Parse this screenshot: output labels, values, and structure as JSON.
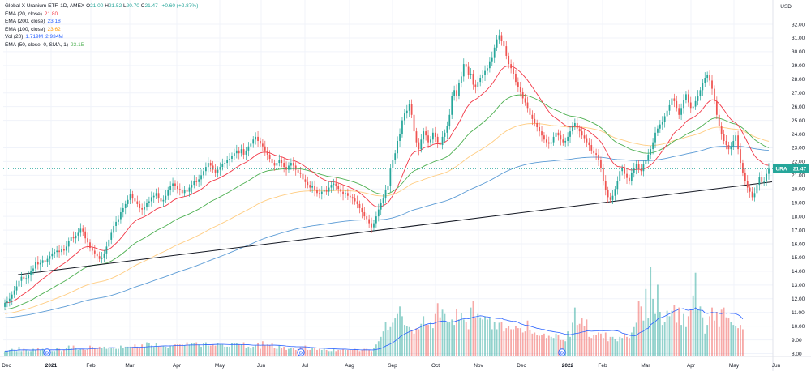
{
  "header": {
    "symbol_line": "Global X Uranium ETF, 1D, AMEX",
    "ohlc": [
      {
        "label": "O",
        "value": "21.00"
      },
      {
        "label": "H",
        "value": "21.52"
      },
      {
        "label": "L",
        "value": "20.70"
      },
      {
        "label": "C",
        "value": "21.47"
      }
    ],
    "change": "+0.60 (+2.87%)",
    "currency": "USD"
  },
  "indicators": [
    {
      "label": "EMA (20, close)",
      "value": "21.80",
      "color": "#f23645"
    },
    {
      "label": "EMA (200, close)",
      "value": "23.18",
      "color": "#2962ff"
    },
    {
      "label": "EMA (100, close)",
      "value": "23.62",
      "color": "#ff9800"
    },
    {
      "label": "Vol (20)",
      "value": "1.719M",
      "value2": "2.934M",
      "color": "#2962ff"
    },
    {
      "label": "EMA (50, close, 0, SMA, 1)",
      "value": "23.15",
      "color": "#4caf50"
    }
  ],
  "price_tag": {
    "symbol": "URA",
    "value": "21.47",
    "color": "#26a69a"
  },
  "colors": {
    "up": "#26a69a",
    "down": "#ef5350",
    "ema20": "#f23645",
    "ema50": "#4caf50",
    "ema100": "#ffcc80",
    "ema200": "#5b9bd5",
    "trend": "#131722",
    "vol_ma": "#2962ff"
  },
  "chart_data": {
    "type": "candlestick",
    "ylim": [
      8.0,
      32.5
    ],
    "y_ticks": [
      "32.00",
      "31.00",
      "30.00",
      "29.00",
      "28.00",
      "27.00",
      "26.00",
      "25.00",
      "24.00",
      "23.00",
      "22.00",
      "21.00",
      "20.00",
      "19.00",
      "18.00",
      "17.00",
      "16.00",
      "15.00",
      "14.00",
      "13.00",
      "12.00",
      "11.00",
      "10.00",
      "9.00",
      "8.00"
    ],
    "x_ticks": [
      "Dec",
      "2021",
      "Feb",
      "Mar",
      "Apr",
      "May",
      "Jun",
      "Jul",
      "Aug",
      "Sep",
      "Oct",
      "Nov",
      "Dec",
      "2022",
      "Feb",
      "Mar",
      "Apr",
      "May",
      "Jun"
    ],
    "dividend_markers": [
      "D",
      "D",
      "D"
    ],
    "close_series": [
      11.7,
      11.8,
      12,
      12.3,
      12.6,
      12.9,
      13.3,
      13.6,
      13.4,
      13.5,
      13.7,
      14,
      14.2,
      14.7,
      14.5,
      14.6,
      14.8,
      14.7,
      14.9,
      15.1,
      15.3,
      15.4,
      15.5,
      15.4,
      15.6,
      15.5,
      15.8,
      16.2,
      16.5,
      16.4,
      16.6,
      16.8,
      17.1,
      16.9,
      16.4,
      16.1,
      15.7,
      15.5,
      15.3,
      15.1,
      14.9,
      15,
      15.3,
      15.8,
      16.3,
      16.8,
      17.3,
      17.6,
      17.8,
      18.3,
      18.6,
      18.9,
      19.2,
      19.6,
      19.3,
      19.1,
      18.9,
      18.6,
      18.5,
      18.7,
      19,
      19.1,
      19.4,
      19.5,
      19.7,
      19.3,
      19.1,
      19.2,
      19.5,
      19.9,
      20.2,
      20.4,
      20.2,
      20,
      19.9,
      19.7,
      19.9,
      19.8,
      20.1,
      20.3,
      20.6,
      20.5,
      20.7,
      21,
      21.3,
      21.6,
      21.9,
      21.7,
      21.4,
      21.2,
      21.4,
      21.6,
      21.8,
      21.9,
      22.1,
      22.2,
      22.4,
      22.6,
      22.8,
      22.6,
      22.9,
      22.5,
      22.8,
      23.1,
      23.3,
      23.6,
      23.8,
      23.5,
      23.3,
      23.1,
      22.8,
      22.5,
      22.2,
      21.9,
      21.7,
      21.9,
      22.1,
      21.9,
      21.6,
      21.4,
      21.7,
      21.9,
      21.7,
      21.4,
      21.2,
      21.1,
      20.7,
      20.5,
      20.3,
      20.1,
      20.2,
      19.9,
      19.7,
      19.6,
      19.8,
      19.9,
      19.8,
      20.1,
      20.3,
      20.4,
      20.2,
      20,
      19.8,
      19.6,
      19.7,
      19.5,
      19.4,
      19.3,
      19.1,
      18.9,
      18.6,
      18.3,
      18,
      17.8,
      17.5,
      17.2,
      17.5,
      18,
      18.5,
      19,
      19.3,
      19.9,
      20.2,
      21.5,
      22.1,
      22.6,
      23.5,
      24,
      25,
      25.5,
      25.7,
      26.2,
      25.4,
      24.2,
      23.4,
      22.9,
      23.6,
      24.2,
      23.9,
      23.4,
      23.6,
      24.1,
      23.8,
      23.4,
      23.2,
      23.8,
      24.1,
      24.6,
      25.4,
      26.8,
      27.2,
      26.8,
      27.7,
      28.2,
      29.1,
      28.9,
      28.3,
      28.4,
      27.6,
      27.4,
      27.8,
      28.1,
      28.3,
      28.6,
      28.8,
      29.3,
      29.6,
      30.3,
      30.9,
      31.2,
      30.8,
      30.4,
      29.7,
      29.1,
      28.8,
      28.4,
      27.8,
      27.4,
      27.1,
      26.6,
      26.3,
      25.9,
      25.4,
      25.1,
      24.8,
      24.5,
      24.2,
      23.9,
      23.6,
      23.4,
      23.3,
      23.4,
      23.8,
      24.1,
      23.9,
      23.6,
      23.4,
      23.5,
      23.8,
      24.2,
      24.6,
      24.8,
      24.4,
      24.2,
      23.9,
      23.7,
      23.4,
      23.2,
      22.8,
      22.6,
      22.5,
      22.1,
      21.5,
      20.6,
      19.9,
      19.4,
      19.2,
      19.5,
      20,
      20.6,
      21.3,
      21.5,
      21.1,
      20.8,
      20.6,
      21.2,
      21.5,
      21.8,
      21.4,
      21.3,
      21.8,
      22.1,
      22.5,
      22.9,
      23.4,
      24.1,
      24.4,
      24.7,
      24.9,
      25.3,
      25.7,
      26.1,
      26.6,
      26.4,
      25.9,
      25.4,
      25.9,
      26.5,
      26.9,
      26.3,
      25.9,
      26,
      26.4,
      26.8,
      27.2,
      27.7,
      28.1,
      28.3,
      27.9,
      27.3,
      26.4,
      25.4,
      24.6,
      24,
      23.5,
      23.2,
      22.9,
      23.1,
      23.5,
      23.9,
      22.9,
      21.9,
      21.2,
      20.6,
      20.1,
      19.8,
      19.4,
      19.7,
      20.3,
      20.9,
      20.5,
      20.6,
      21.1,
      21.47
    ],
    "volume_series": [
      0.5,
      0.5,
      0.6,
      0.7,
      0.6,
      0.5,
      0.9,
      0.5,
      0.7,
      0.6,
      0.5,
      0.5,
      0.7,
      0.6,
      0.8,
      0.6,
      0.7,
      0.5,
      0.6,
      0.6,
      0.5,
      0.5,
      0.8,
      0.7,
      0.5,
      0.6,
      0.8,
      1,
      0.8,
      1,
      0.8,
      0.6,
      0.7,
      0.7,
      0.6,
      0.7,
      1,
      0.9,
      0.8,
      0.8,
      0.9,
      0.8,
      0.9,
      0.7,
      0.8,
      0.8,
      0.8,
      0.7,
      0.7,
      1,
      0.8,
      0.9,
      0.9,
      0.9,
      0.9,
      1.1,
      0.9,
      0.8,
      1.1,
      0.9,
      1.3,
      1.2,
      1,
      0.9,
      1.2,
      0.9,
      1,
      1,
      0.9,
      0.8,
      1,
      1,
      1.1,
      1.1,
      1.1,
      1.1,
      1,
      1.3,
      1.1,
      1.2,
      1.2,
      1.3,
      1.1,
      0.9,
      1.2,
      1.3,
      1,
      1,
      1.1,
      1,
      1.2,
      1.1,
      1.1,
      0.9,
      0.9,
      0.9,
      1.2,
      1.2,
      1.2,
      1.1,
      1.1,
      1.3,
      0.8,
      0.9,
      0.8,
      0.9,
      1,
      1.2,
      0.7,
      1.4,
      1,
      1.1,
      1,
      1.2,
      0.8,
      0.7,
      1,
      0.8,
      0.9,
      0.6,
      0.7,
      0.8,
      0.8,
      0.6,
      0.7,
      0.9,
      0.9,
      1,
      0.6,
      0.6,
      0.8,
      0.8,
      0.6,
      0.7,
      0.6,
      0.7,
      0.6,
      0.5,
      0.5,
      0.7,
      0.5,
      0.6,
      0.6,
      0.7,
      0.6,
      0.6,
      0.6,
      0.6,
      0.7,
      0.6,
      0.5,
      0.6,
      0.7,
      0.7,
      0.6,
      0.5,
      0.8,
      1.1,
      1.4,
      1.8,
      2.3,
      3.2,
      2.4,
      2.7,
      3.1,
      3.5,
      3.9,
      4.6,
      3.7,
      2.9,
      2.8,
      2.7,
      2.4,
      2.1,
      2.6,
      2.5,
      3,
      3.7,
      2.9,
      2.9,
      3.1,
      2.6,
      3.9,
      4.9,
      3.6,
      4.3,
      3.9,
      3.2,
      3.2,
      3.4,
      2.9,
      4.4,
      3.4,
      4,
      3.4,
      3.2,
      2.5,
      4.5,
      5.1,
      3.5,
      3.9,
      3.6,
      3.4,
      3.7,
      3.4,
      3.5,
      2.5,
      3.2,
      2.5,
      3.1,
      3.2,
      2.3,
      2.6,
      2.8,
      2.5,
      2.5,
      2.8,
      2.6,
      2.6,
      2.2,
      2.3,
      3.3,
      2.4,
      2.1,
      2.2,
      2,
      1.9,
      2,
      2.1,
      1.7,
      1.9,
      1.8,
      1.7,
      2.1,
      2,
      1.5,
      1.5,
      1.4,
      2.3,
      1.8,
      3.1,
      4.5,
      2.9,
      3,
      3.5,
      2.8,
      3.4,
      1.8,
      1.7,
      2,
      2,
      2.2,
      2.1,
      1.7,
      2.2,
      1.4,
      1.8,
      1.8,
      1.6,
      1.4,
      1.8,
      1.7,
      2.1,
      1.8,
      1.7,
      2.2,
      2.7,
      3.1,
      5.1,
      4.6,
      3.3,
      6.2,
      3.5,
      8.2,
      5.3,
      3.9,
      6.6,
      4.1,
      2.9,
      3.2,
      4.2,
      3.7,
      4.2,
      4.7,
      3.1,
      4.5,
      2.9,
      3.9,
      2.7,
      3.7,
      4.4,
      5.6,
      7.7,
      4.4,
      4.6,
      3.6,
      2.1,
      2.9,
      3.7,
      4.5,
      3.3,
      4.1,
      2.7,
      4.3,
      4.5,
      3.6,
      3.5,
      3.2,
      2.9,
      2.8,
      2.6,
      2.9,
      2.5
    ]
  }
}
